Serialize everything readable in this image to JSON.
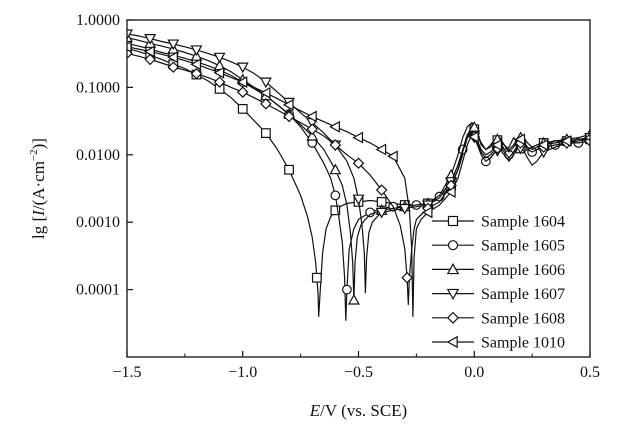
{
  "chart_data": {
    "type": "line",
    "title": "",
    "xlabel_parts": [
      "E",
      "/V (vs. SCE)"
    ],
    "ylabel_parts": [
      "lg [",
      "I",
      "/(A·cm",
      "−2",
      ")]"
    ],
    "xlim": [
      -1.5,
      0.5
    ],
    "ylim_log10": [
      -5,
      0
    ],
    "y_scale": "log",
    "grid": false,
    "legend_position": "bottom-right",
    "x_ticks": [
      -1.5,
      -1.0,
      -0.5,
      0.0,
      0.5
    ],
    "x_tick_labels": [
      "−1.5",
      "−1.0",
      "−0.5",
      "0.0",
      "0.5"
    ],
    "y_ticks": [
      1.0,
      0.1,
      0.01,
      0.001,
      0.0001
    ],
    "y_tick_labels": [
      "1.0000",
      "0.1000",
      "0.0100",
      "0.0010",
      "0.0001"
    ],
    "series": [
      {
        "name": "Sample 1604",
        "marker": "square",
        "x": [
          -1.5,
          -1.45,
          -1.4,
          -1.35,
          -1.3,
          -1.25,
          -1.2,
          -1.15,
          -1.1,
          -1.05,
          -1.0,
          -0.95,
          -0.9,
          -0.85,
          -0.8,
          -0.75,
          -0.72,
          -0.7,
          -0.685,
          -0.675,
          -0.672,
          -0.665,
          -0.655,
          -0.64,
          -0.62,
          -0.6,
          -0.58,
          -0.55,
          -0.5,
          -0.45,
          -0.4,
          -0.35,
          -0.3,
          -0.25,
          -0.2,
          -0.15,
          -0.1,
          -0.07,
          -0.05,
          -0.03,
          -0.01,
          0.01,
          0.03,
          0.05,
          0.07,
          0.09,
          0.11,
          0.13,
          0.15,
          0.17,
          0.19,
          0.21,
          0.23,
          0.25,
          0.27,
          0.3,
          0.33,
          0.36,
          0.4,
          0.45,
          0.5
        ],
        "y": [
          0.38,
          0.34,
          0.3,
          0.26,
          0.22,
          0.19,
          0.155,
          0.125,
          0.095,
          0.07,
          0.048,
          0.032,
          0.021,
          0.012,
          0.006,
          0.0025,
          0.0012,
          0.0006,
          0.00025,
          9e-05,
          4e-05,
          0.0001,
          0.00035,
          0.0008,
          0.0012,
          0.0015,
          0.0017,
          0.0019,
          0.002,
          0.0021,
          0.002,
          0.0019,
          0.0018,
          0.0018,
          0.0019,
          0.0022,
          0.0035,
          0.006,
          0.01,
          0.018,
          0.026,
          0.022,
          0.014,
          0.012,
          0.014,
          0.017,
          0.016,
          0.012,
          0.013,
          0.018,
          0.014,
          0.011,
          0.012,
          0.013,
          0.014,
          0.015,
          0.015,
          0.016,
          0.016,
          0.016,
          0.017
        ],
        "marker_x": [
          -1.5,
          -1.4,
          -1.3,
          -1.2,
          -1.1,
          -1.0,
          -0.9,
          -0.8,
          -0.68,
          -0.6,
          -0.5,
          -0.4,
          -0.3,
          -0.2,
          -0.1,
          0.0,
          0.1,
          0.2,
          0.3,
          0.4,
          0.5
        ]
      },
      {
        "name": "Sample 1605",
        "marker": "circle",
        "x": [
          -1.5,
          -1.45,
          -1.4,
          -1.35,
          -1.3,
          -1.25,
          -1.2,
          -1.15,
          -1.1,
          -1.05,
          -1.0,
          -0.95,
          -0.9,
          -0.85,
          -0.8,
          -0.75,
          -0.7,
          -0.65,
          -0.62,
          -0.6,
          -0.585,
          -0.57,
          -0.56,
          -0.555,
          -0.55,
          -0.54,
          -0.52,
          -0.5,
          -0.45,
          -0.4,
          -0.35,
          -0.3,
          -0.25,
          -0.2,
          -0.15,
          -0.1,
          -0.07,
          -0.05,
          -0.03,
          -0.01,
          0.01,
          0.03,
          0.05,
          0.07,
          0.09,
          0.11,
          0.13,
          0.15,
          0.17,
          0.19,
          0.21,
          0.23,
          0.25,
          0.27,
          0.3,
          0.35,
          0.4,
          0.45,
          0.5
        ],
        "y": [
          0.45,
          0.41,
          0.37,
          0.33,
          0.3,
          0.27,
          0.24,
          0.21,
          0.18,
          0.15,
          0.12,
          0.095,
          0.075,
          0.055,
          0.04,
          0.026,
          0.015,
          0.0075,
          0.0045,
          0.0025,
          0.0012,
          0.0005,
          0.00015,
          3.5e-05,
          0.0001,
          0.0004,
          0.0008,
          0.0011,
          0.0014,
          0.0016,
          0.0017,
          0.0017,
          0.0018,
          0.0019,
          0.0024,
          0.004,
          0.007,
          0.012,
          0.02,
          0.024,
          0.016,
          0.01,
          0.008,
          0.009,
          0.011,
          0.013,
          0.012,
          0.01,
          0.011,
          0.014,
          0.016,
          0.012,
          0.011,
          0.012,
          0.013,
          0.014,
          0.015,
          0.015,
          0.016
        ],
        "marker_x": [
          -1.5,
          -1.4,
          -1.3,
          -1.2,
          -1.1,
          -1.0,
          -0.9,
          -0.8,
          -0.7,
          -0.6,
          -0.55,
          -0.45,
          -0.35,
          -0.25,
          -0.15,
          -0.05,
          0.05,
          0.15,
          0.25,
          0.35,
          0.45
        ]
      },
      {
        "name": "Sample 1606",
        "marker": "triangle-up",
        "x": [
          -1.5,
          -1.45,
          -1.4,
          -1.35,
          -1.3,
          -1.25,
          -1.2,
          -1.15,
          -1.1,
          -1.05,
          -1.0,
          -0.95,
          -0.9,
          -0.85,
          -0.8,
          -0.75,
          -0.7,
          -0.65,
          -0.6,
          -0.57,
          -0.55,
          -0.535,
          -0.525,
          -0.52,
          -0.515,
          -0.505,
          -0.49,
          -0.47,
          -0.45,
          -0.4,
          -0.35,
          -0.3,
          -0.25,
          -0.2,
          -0.15,
          -0.1,
          -0.07,
          -0.05,
          -0.03,
          -0.01,
          0.01,
          0.03,
          0.05,
          0.07,
          0.09,
          0.11,
          0.13,
          0.15,
          0.17,
          0.19,
          0.21,
          0.23,
          0.25,
          0.27,
          0.3,
          0.35,
          0.4,
          0.45,
          0.5
        ],
        "y": [
          0.55,
          0.5,
          0.45,
          0.41,
          0.37,
          0.33,
          0.29,
          0.25,
          0.21,
          0.17,
          0.13,
          0.1,
          0.075,
          0.055,
          0.04,
          0.028,
          0.019,
          0.012,
          0.006,
          0.0035,
          0.0018,
          0.0007,
          0.00025,
          7e-05,
          0.00025,
          0.0006,
          0.0009,
          0.0011,
          0.0013,
          0.0015,
          0.0016,
          0.0017,
          0.0018,
          0.0019,
          0.0025,
          0.005,
          0.01,
          0.018,
          0.026,
          0.03,
          0.022,
          0.015,
          0.012,
          0.013,
          0.016,
          0.018,
          0.014,
          0.011,
          0.013,
          0.017,
          0.019,
          0.015,
          0.013,
          0.014,
          0.015,
          0.016,
          0.017,
          0.018,
          0.02
        ],
        "marker_x": [
          -1.5,
          -1.4,
          -1.3,
          -1.2,
          -1.1,
          -1.0,
          -0.9,
          -0.8,
          -0.7,
          -0.6,
          -0.52,
          -0.4,
          -0.3,
          -0.2,
          -0.1,
          0.0,
          0.1,
          0.2,
          0.3,
          0.4,
          0.5
        ]
      },
      {
        "name": "Sample 1607",
        "marker": "triangle-down",
        "x": [
          -1.5,
          -1.45,
          -1.4,
          -1.35,
          -1.3,
          -1.25,
          -1.2,
          -1.15,
          -1.1,
          -1.05,
          -1.0,
          -0.95,
          -0.9,
          -0.85,
          -0.8,
          -0.75,
          -0.7,
          -0.65,
          -0.6,
          -0.55,
          -0.52,
          -0.5,
          -0.485,
          -0.475,
          -0.47,
          -0.465,
          -0.455,
          -0.44,
          -0.42,
          -0.4,
          -0.35,
          -0.3,
          -0.25,
          -0.2,
          -0.15,
          -0.1,
          -0.07,
          -0.05,
          -0.03,
          -0.01,
          0.01,
          0.03,
          0.05,
          0.07,
          0.09,
          0.11,
          0.13,
          0.15,
          0.17,
          0.19,
          0.21,
          0.23,
          0.25,
          0.27,
          0.3,
          0.35,
          0.4,
          0.45,
          0.5
        ],
        "y": [
          0.62,
          0.58,
          0.53,
          0.48,
          0.44,
          0.4,
          0.36,
          0.32,
          0.28,
          0.24,
          0.2,
          0.16,
          0.12,
          0.085,
          0.06,
          0.042,
          0.03,
          0.021,
          0.014,
          0.008,
          0.0045,
          0.0022,
          0.0009,
          0.00035,
          9e-05,
          0.0003,
          0.0007,
          0.001,
          0.0012,
          0.0014,
          0.0015,
          0.0016,
          0.0017,
          0.0018,
          0.0023,
          0.004,
          0.007,
          0.012,
          0.018,
          0.022,
          0.015,
          0.01,
          0.008,
          0.009,
          0.011,
          0.012,
          0.01,
          0.008,
          0.01,
          0.013,
          0.012,
          0.009,
          0.007,
          0.008,
          0.011,
          0.013,
          0.015,
          0.016,
          0.018
        ],
        "marker_x": [
          -1.5,
          -1.4,
          -1.3,
          -1.2,
          -1.1,
          -1.0,
          -0.9,
          -0.8,
          -0.7,
          -0.6,
          -0.5,
          -0.4,
          -0.3,
          -0.2,
          -0.1,
          0.0,
          0.1,
          0.2,
          0.3,
          0.4,
          0.5
        ]
      },
      {
        "name": "Sample 1608",
        "marker": "diamond",
        "x": [
          -1.5,
          -1.45,
          -1.4,
          -1.35,
          -1.3,
          -1.25,
          -1.2,
          -1.15,
          -1.1,
          -1.05,
          -1.0,
          -0.95,
          -0.9,
          -0.85,
          -0.8,
          -0.75,
          -0.7,
          -0.65,
          -0.6,
          -0.55,
          -0.5,
          -0.45,
          -0.4,
          -0.35,
          -0.32,
          -0.3,
          -0.29,
          -0.285,
          -0.28,
          -0.27,
          -0.26,
          -0.25,
          -0.22,
          -0.2,
          -0.15,
          -0.1,
          -0.07,
          -0.05,
          -0.03,
          -0.01,
          0.01,
          0.03,
          0.05,
          0.07,
          0.09,
          0.11,
          0.13,
          0.15,
          0.17,
          0.19,
          0.21,
          0.23,
          0.25,
          0.27,
          0.3,
          0.35,
          0.4,
          0.45,
          0.5
        ],
        "y": [
          0.32,
          0.29,
          0.26,
          0.23,
          0.2,
          0.18,
          0.16,
          0.14,
          0.12,
          0.1,
          0.085,
          0.07,
          0.057,
          0.046,
          0.037,
          0.03,
          0.024,
          0.019,
          0.014,
          0.01,
          0.0075,
          0.005,
          0.003,
          0.0017,
          0.0009,
          0.0004,
          0.00015,
          6e-05,
          0.00015,
          0.0004,
          0.0008,
          0.0011,
          0.0014,
          0.0016,
          0.002,
          0.0035,
          0.006,
          0.011,
          0.018,
          0.022,
          0.016,
          0.011,
          0.009,
          0.01,
          0.012,
          0.013,
          0.011,
          0.009,
          0.011,
          0.014,
          0.016,
          0.012,
          0.011,
          0.012,
          0.013,
          0.014,
          0.015,
          0.015,
          0.016
        ],
        "marker_x": [
          -1.5,
          -1.4,
          -1.3,
          -1.2,
          -1.1,
          -1.0,
          -0.9,
          -0.8,
          -0.7,
          -0.6,
          -0.5,
          -0.4,
          -0.29,
          -0.2,
          -0.1,
          0.0,
          0.1,
          0.2,
          0.3,
          0.4,
          0.5
        ]
      },
      {
        "name": "Sample 1010",
        "marker": "triangle-left",
        "x": [
          -1.5,
          -1.45,
          -1.4,
          -1.35,
          -1.3,
          -1.25,
          -1.2,
          -1.15,
          -1.1,
          -1.05,
          -1.0,
          -0.95,
          -0.9,
          -0.85,
          -0.8,
          -0.75,
          -0.7,
          -0.65,
          -0.6,
          -0.55,
          -0.5,
          -0.45,
          -0.4,
          -0.35,
          -0.3,
          -0.28,
          -0.27,
          -0.265,
          -0.26,
          -0.25,
          -0.23,
          -0.2,
          -0.15,
          -0.1,
          -0.07,
          -0.05,
          -0.03,
          -0.01,
          0.01,
          0.03,
          0.05,
          0.07,
          0.09,
          0.11,
          0.13,
          0.15,
          0.17,
          0.19,
          0.21,
          0.23,
          0.25,
          0.27,
          0.3,
          0.35,
          0.4,
          0.45,
          0.5
        ],
        "y": [
          0.4,
          0.37,
          0.34,
          0.31,
          0.28,
          0.25,
          0.22,
          0.19,
          0.165,
          0.14,
          0.12,
          0.1,
          0.083,
          0.068,
          0.055,
          0.045,
          0.037,
          0.031,
          0.026,
          0.022,
          0.018,
          0.015,
          0.012,
          0.0095,
          0.0045,
          0.0015,
          0.0004,
          4e-05,
          0.0003,
          0.0008,
          0.0011,
          0.0014,
          0.0018,
          0.0028,
          0.0045,
          0.008,
          0.014,
          0.02,
          0.017,
          0.012,
          0.01,
          0.011,
          0.013,
          0.015,
          0.014,
          0.012,
          0.014,
          0.018,
          0.016,
          0.013,
          0.012,
          0.013,
          0.014,
          0.015,
          0.016,
          0.017,
          0.018
        ],
        "marker_x": [
          -1.5,
          -1.4,
          -1.3,
          -1.2,
          -1.1,
          -1.0,
          -0.9,
          -0.8,
          -0.7,
          -0.6,
          -0.5,
          -0.4,
          -0.35,
          -0.2,
          -0.1,
          0.0,
          0.1,
          0.2,
          0.3,
          0.4,
          0.5
        ]
      }
    ]
  }
}
